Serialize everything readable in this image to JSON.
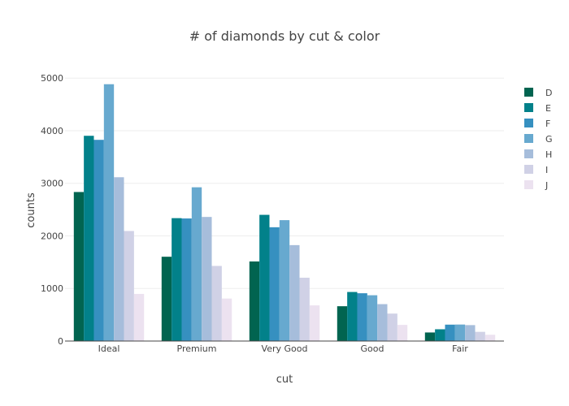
{
  "chart_data": {
    "type": "bar",
    "title": "# of diamonds by cut & color",
    "xlabel": "cut",
    "ylabel": "counts",
    "categories": [
      "Ideal",
      "Premium",
      "Very Good",
      "Good",
      "Fair"
    ],
    "ylim": [
      0,
      5250
    ],
    "yticks": [
      0,
      1000,
      2000,
      3000,
      4000,
      5000
    ],
    "grid": true,
    "legend_position": "right",
    "series": [
      {
        "name": "D",
        "color": "#016450",
        "values": [
          2834,
          1603,
          1513,
          662,
          163
        ]
      },
      {
        "name": "E",
        "color": "#02818a",
        "values": [
          3903,
          2337,
          2400,
          933,
          224
        ]
      },
      {
        "name": "F",
        "color": "#3690c0",
        "values": [
          3826,
          2331,
          2164,
          909,
          312
        ]
      },
      {
        "name": "G",
        "color": "#67a9cf",
        "values": [
          4884,
          2924,
          2299,
          871,
          314
        ]
      },
      {
        "name": "H",
        "color": "#a6bddb",
        "values": [
          3115,
          2360,
          1824,
          702,
          303
        ]
      },
      {
        "name": "I",
        "color": "#d0d1e6",
        "values": [
          2093,
          1428,
          1204,
          522,
          175
        ]
      },
      {
        "name": "J",
        "color": "#ece2f0",
        "values": [
          896,
          808,
          678,
          307,
          119
        ]
      }
    ]
  }
}
